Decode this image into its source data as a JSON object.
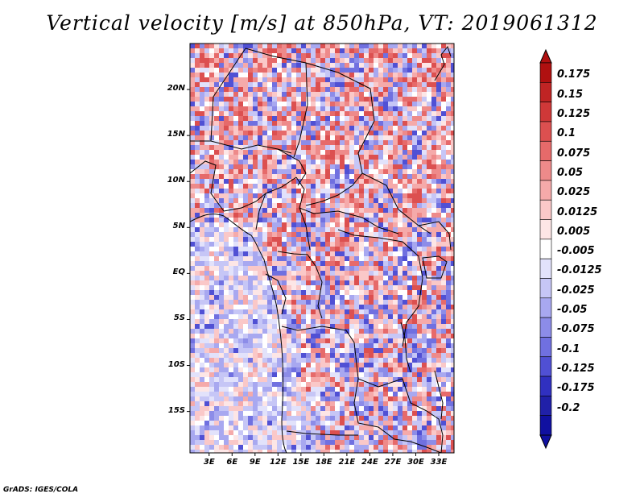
{
  "title": "Vertical velocity [m/s] at 850hPa, VT: 2019061312",
  "lat_ticks": [
    "20N",
    "15N",
    "10N",
    "5N",
    "EQ",
    "5S",
    "10S",
    "15S"
  ],
  "lat_values": [
    20,
    15,
    10,
    5,
    0,
    -5,
    -10,
    -15
  ],
  "lon_ticks": [
    "3E",
    "6E",
    "9E",
    "12E",
    "15E",
    "18E",
    "21E",
    "24E",
    "27E",
    "30E",
    "33E"
  ],
  "lon_values": [
    3,
    6,
    9,
    12,
    15,
    18,
    21,
    24,
    27,
    30,
    33
  ],
  "map_extent": {
    "lon": [
      0.5,
      35
    ],
    "lat": [
      -19.5,
      25
    ]
  },
  "colorbar": {
    "levels": [
      "0.175",
      "0.15",
      "0.125",
      "0.1",
      "0.075",
      "0.05",
      "0.025",
      "0.0125",
      "0.005",
      "-0.005",
      "-0.0125",
      "-0.025",
      "-0.05",
      "-0.075",
      "-0.1",
      "-0.125",
      "-0.175",
      "-0.2"
    ],
    "colors": [
      "#b01010",
      "#c02424",
      "#cf3838",
      "#dc5050",
      "#e66a6a",
      "#ee8a8a",
      "#f5aaaa",
      "#fac8c8",
      "#fde6e6",
      "#ffffff",
      "#e2e2fb",
      "#c6c6f6",
      "#a8a8f0",
      "#8c8ce8",
      "#7070e0",
      "#5050d4",
      "#3030c0",
      "#2020a8",
      "#1010a0"
    ]
  },
  "credit": "GrADS: IGES/COLA"
}
